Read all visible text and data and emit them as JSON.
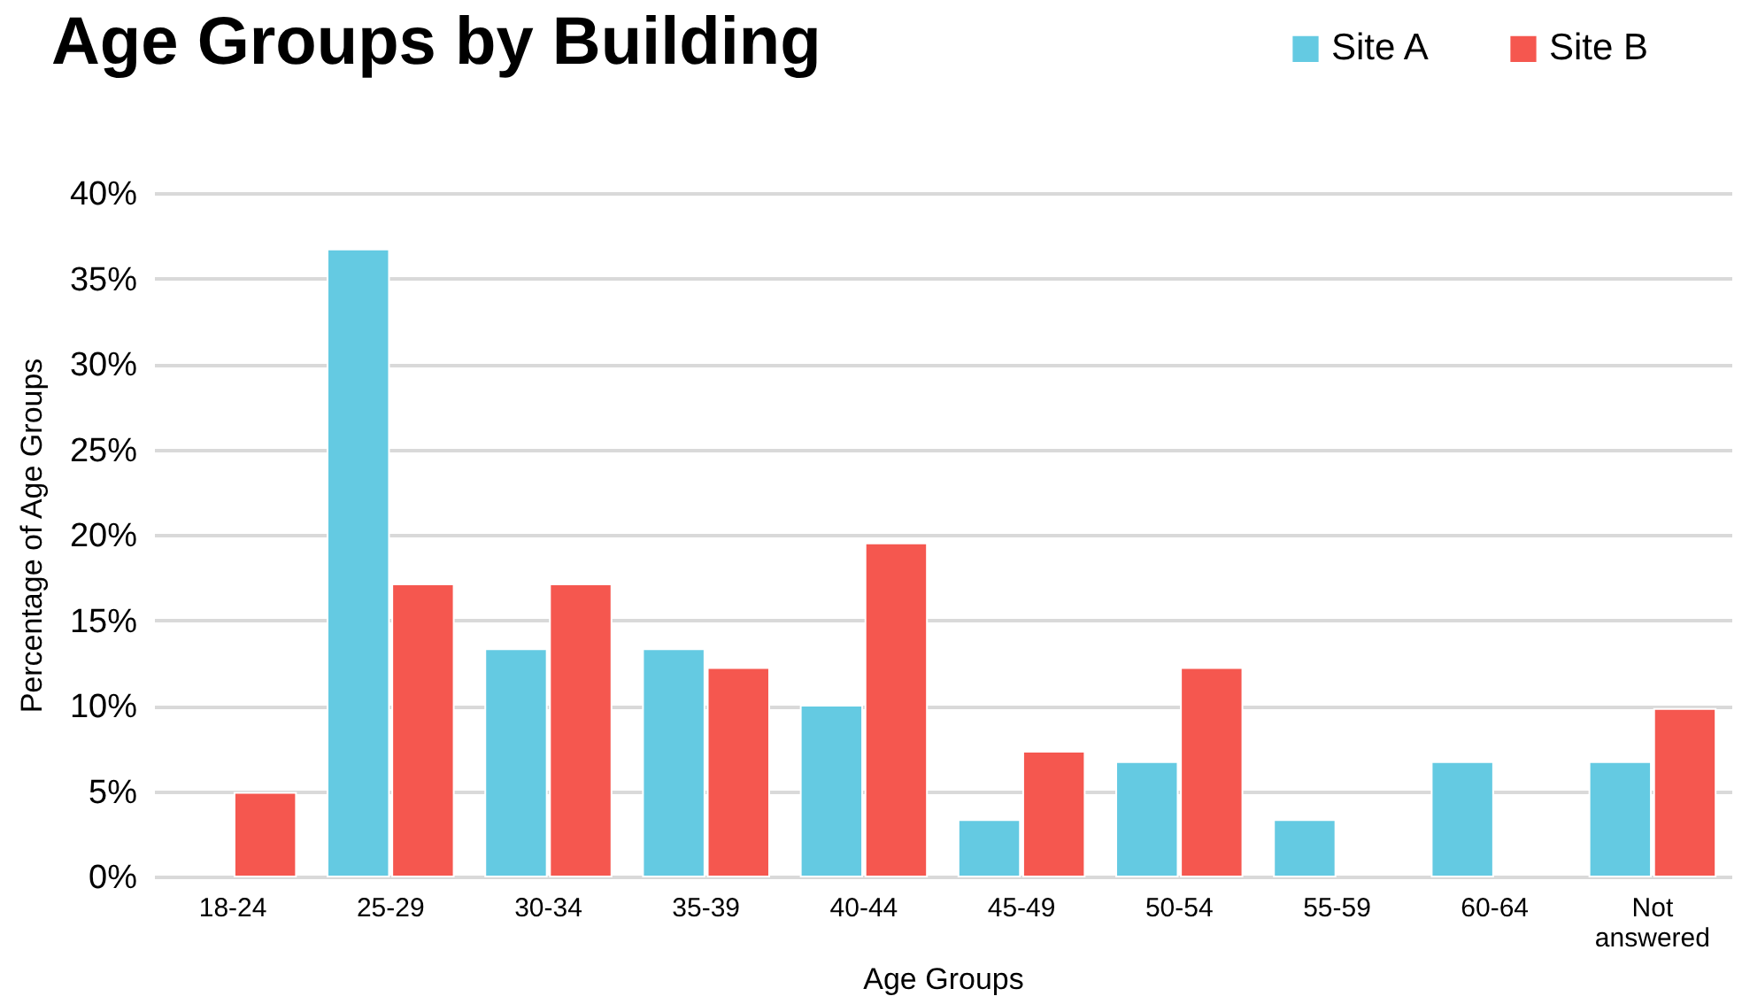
{
  "chart_data": {
    "type": "bar",
    "title": "Age Groups by Building",
    "xlabel": "Age Groups",
    "ylabel": "Percentage of Age Groups",
    "categories": [
      "18-24",
      "25-29",
      "30-34",
      "35-39",
      "40-44",
      "45-49",
      "50-54",
      "55-59",
      "60-64",
      "Not answered"
    ],
    "series": [
      {
        "name": "Site A",
        "color": "#64cae2",
        "values": [
          null,
          36.7,
          13.3,
          13.3,
          10,
          3.3,
          6.7,
          3.3,
          6.7,
          6.7
        ]
      },
      {
        "name": "Site B",
        "color": "#f5574f",
        "values": [
          4.9,
          17.1,
          17.1,
          12.2,
          19.5,
          7.3,
          12.2,
          null,
          null,
          9.8
        ]
      }
    ],
    "ylim": [
      0,
      40
    ],
    "yticks": [
      {
        "value": 0,
        "label": "0%"
      },
      {
        "value": 5,
        "label": "5%"
      },
      {
        "value": 10,
        "label": "10%"
      },
      {
        "value": 15,
        "label": "15%"
      },
      {
        "value": 20,
        "label": "20%"
      },
      {
        "value": 25,
        "label": "25%"
      },
      {
        "value": 30,
        "label": "30%"
      },
      {
        "value": 35,
        "label": "35%"
      },
      {
        "value": 40,
        "label": "40%"
      }
    ],
    "grid": "y",
    "legend": "top right"
  }
}
